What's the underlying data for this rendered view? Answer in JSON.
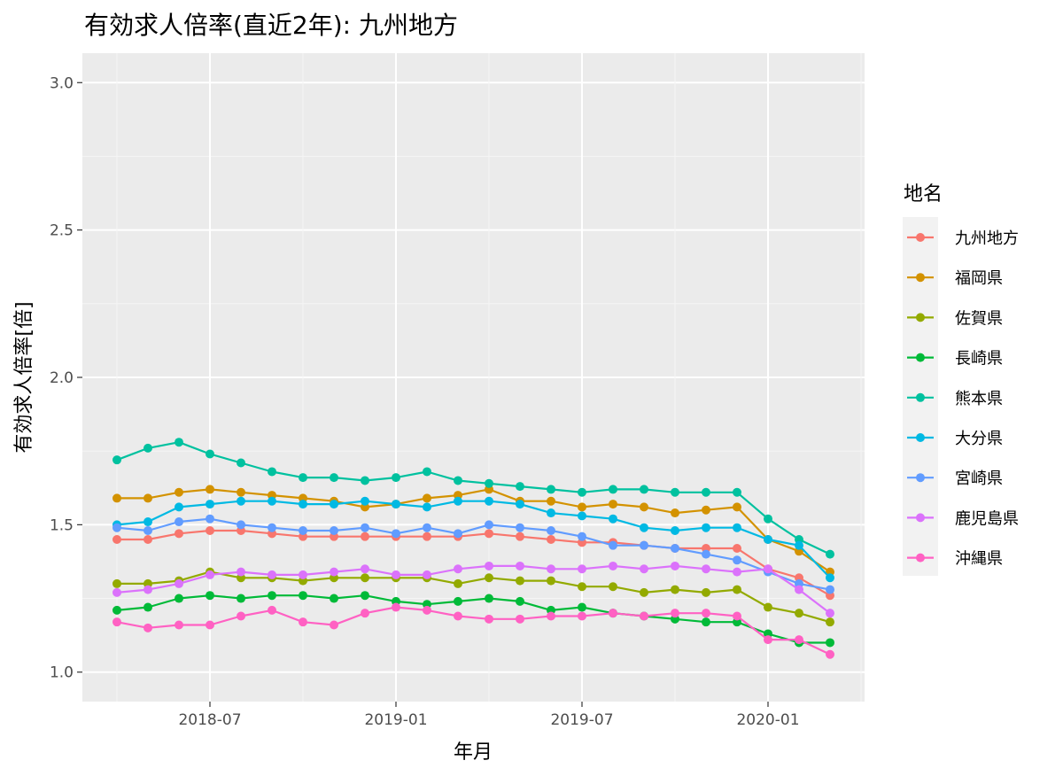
{
  "chart_data": {
    "type": "line",
    "title": "有効求人倍率(直近2年): 九州地方",
    "xlabel": "年月",
    "ylabel": "有効求人倍率[倍]",
    "legend_title": "地名",
    "legend_position": "right",
    "grid": true,
    "x": [
      "2018-04",
      "2018-05",
      "2018-06",
      "2018-07",
      "2018-08",
      "2018-09",
      "2018-10",
      "2018-11",
      "2018-12",
      "2019-01",
      "2019-02",
      "2019-03",
      "2019-04",
      "2019-05",
      "2019-06",
      "2019-07",
      "2019-08",
      "2019-09",
      "2019-10",
      "2019-11",
      "2019-12",
      "2020-01",
      "2020-02",
      "2020-03"
    ],
    "x_ticks": [
      "2018-07",
      "2019-01",
      "2019-07",
      "2020-01"
    ],
    "ylim": [
      0.9,
      3.1
    ],
    "y_ticks": [
      "1.0",
      "1.5",
      "2.0",
      "2.5",
      "3.0"
    ],
    "series": [
      {
        "name": "九州地方",
        "color": "#F8766D",
        "values": [
          1.45,
          1.45,
          1.47,
          1.48,
          1.48,
          1.47,
          1.46,
          1.46,
          1.46,
          1.46,
          1.46,
          1.46,
          1.47,
          1.46,
          1.45,
          1.44,
          1.44,
          1.43,
          1.42,
          1.42,
          1.42,
          1.35,
          1.32,
          1.26
        ]
      },
      {
        "name": "福岡県",
        "color": "#D39200",
        "values": [
          1.59,
          1.59,
          1.61,
          1.62,
          1.61,
          1.6,
          1.59,
          1.58,
          1.56,
          1.57,
          1.59,
          1.6,
          1.62,
          1.58,
          1.58,
          1.56,
          1.57,
          1.56,
          1.54,
          1.55,
          1.56,
          1.45,
          1.41,
          1.34
        ]
      },
      {
        "name": "佐賀県",
        "color": "#93AA00",
        "values": [
          1.3,
          1.3,
          1.31,
          1.34,
          1.32,
          1.32,
          1.31,
          1.32,
          1.32,
          1.32,
          1.32,
          1.3,
          1.32,
          1.31,
          1.31,
          1.29,
          1.29,
          1.27,
          1.28,
          1.27,
          1.28,
          1.22,
          1.2,
          1.17
        ]
      },
      {
        "name": "長崎県",
        "color": "#00BA38",
        "values": [
          1.21,
          1.22,
          1.25,
          1.26,
          1.25,
          1.26,
          1.26,
          1.25,
          1.26,
          1.24,
          1.23,
          1.24,
          1.25,
          1.24,
          1.21,
          1.22,
          1.2,
          1.19,
          1.18,
          1.17,
          1.17,
          1.13,
          1.1,
          1.1
        ]
      },
      {
        "name": "熊本県",
        "color": "#00C19F",
        "values": [
          1.72,
          1.76,
          1.78,
          1.74,
          1.71,
          1.68,
          1.66,
          1.66,
          1.65,
          1.66,
          1.68,
          1.65,
          1.64,
          1.63,
          1.62,
          1.61,
          1.62,
          1.62,
          1.61,
          1.61,
          1.61,
          1.52,
          1.45,
          1.4
        ]
      },
      {
        "name": "大分県",
        "color": "#00B9E3",
        "values": [
          1.5,
          1.51,
          1.56,
          1.57,
          1.58,
          1.58,
          1.57,
          1.57,
          1.58,
          1.57,
          1.56,
          1.58,
          1.58,
          1.57,
          1.54,
          1.53,
          1.52,
          1.49,
          1.48,
          1.49,
          1.49,
          1.45,
          1.43,
          1.32
        ]
      },
      {
        "name": "宮崎県",
        "color": "#619CFF",
        "values": [
          1.49,
          1.48,
          1.51,
          1.52,
          1.5,
          1.49,
          1.48,
          1.48,
          1.49,
          1.47,
          1.49,
          1.47,
          1.5,
          1.49,
          1.48,
          1.46,
          1.43,
          1.43,
          1.42,
          1.4,
          1.38,
          1.34,
          1.3,
          1.28
        ]
      },
      {
        "name": "鹿児島県",
        "color": "#DB72FB",
        "values": [
          1.27,
          1.28,
          1.3,
          1.33,
          1.34,
          1.33,
          1.33,
          1.34,
          1.35,
          1.33,
          1.33,
          1.35,
          1.36,
          1.36,
          1.35,
          1.35,
          1.36,
          1.35,
          1.36,
          1.35,
          1.34,
          1.35,
          1.28,
          1.2
        ]
      },
      {
        "name": "沖縄県",
        "color": "#FF61C3",
        "values": [
          1.17,
          1.15,
          1.16,
          1.16,
          1.19,
          1.21,
          1.17,
          1.16,
          1.2,
          1.22,
          1.21,
          1.19,
          1.18,
          1.18,
          1.19,
          1.19,
          1.2,
          1.19,
          1.2,
          1.2,
          1.19,
          1.11,
          1.11,
          1.06
        ]
      }
    ]
  }
}
